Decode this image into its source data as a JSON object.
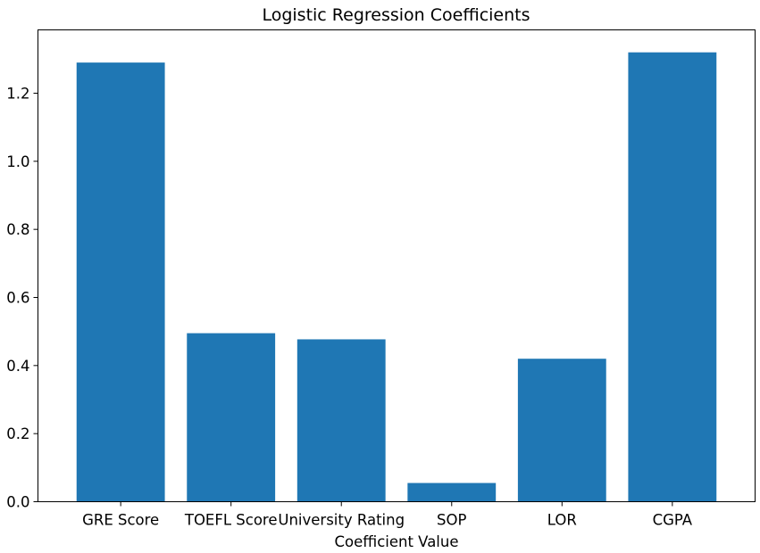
{
  "chart_data": {
    "type": "bar",
    "title": "Logistic Regression Coefficients",
    "xlabel": "Coefficient Value",
    "ylabel": "",
    "categories": [
      "GRE Score",
      "TOEFL Score",
      "University Rating",
      "SOP",
      "LOR",
      "CGPA"
    ],
    "values": [
      1.29,
      0.495,
      0.477,
      0.055,
      0.42,
      1.32
    ],
    "ylim": [
      0,
      1.386
    ],
    "yticks": [
      {
        "value": 0.0,
        "label": "0.0"
      },
      {
        "value": 0.2,
        "label": "0.2"
      },
      {
        "value": 0.4,
        "label": "0.4"
      },
      {
        "value": 0.6,
        "label": "0.6"
      },
      {
        "value": 0.8,
        "label": "0.8"
      },
      {
        "value": 1.0,
        "label": "1.0"
      },
      {
        "value": 1.2,
        "label": "1.2"
      }
    ],
    "grid": false,
    "bar_color": "#1f77b4"
  }
}
